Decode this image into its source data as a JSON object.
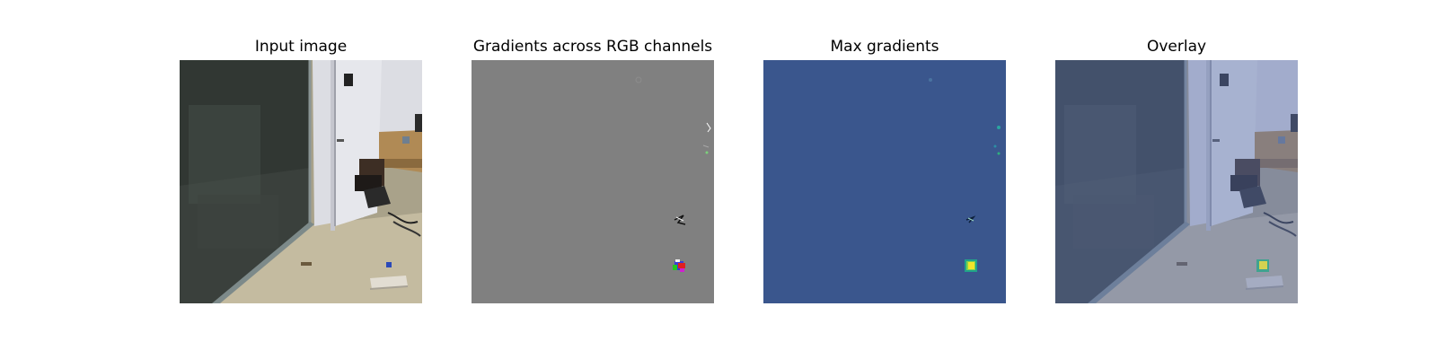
{
  "panels": [
    {
      "title": "Input image"
    },
    {
      "title": "Gradients across RGB channels"
    },
    {
      "title": "Max gradients"
    },
    {
      "title": "Overlay"
    }
  ],
  "colors": {
    "gradient_gray": "#808080",
    "max_gradient_background": "#3a568d",
    "hotspot": "#f2e52a",
    "overlay_tint": "#5a72b0"
  }
}
